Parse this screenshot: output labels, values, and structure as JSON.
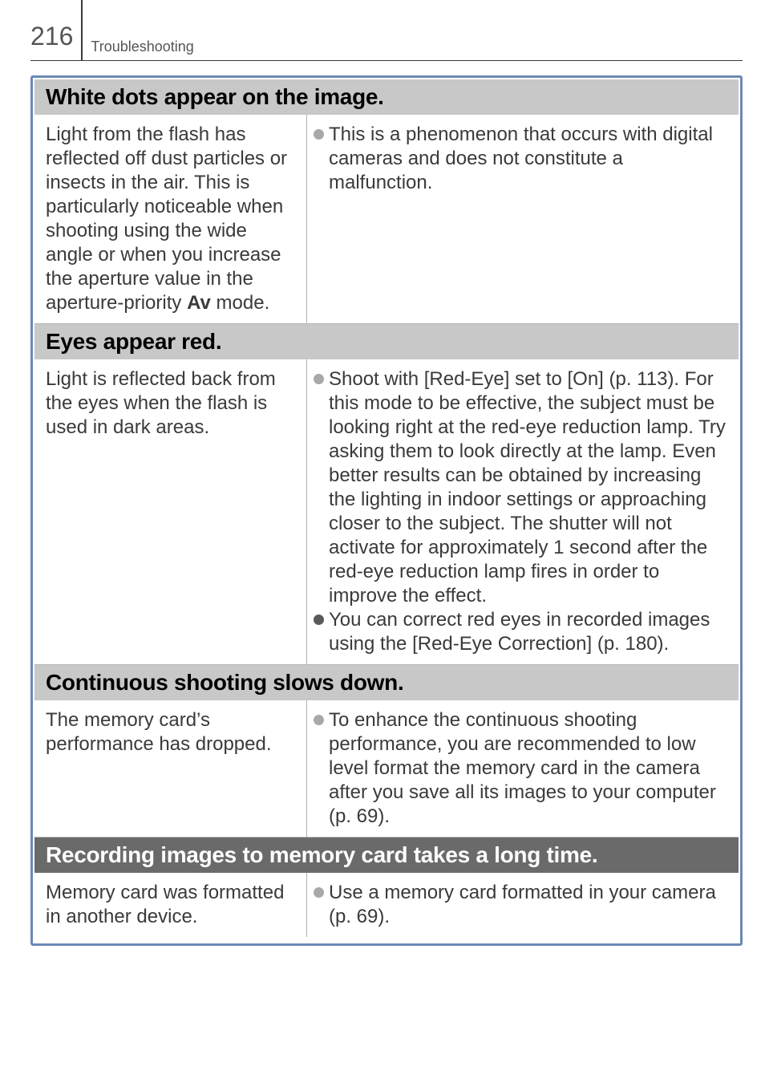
{
  "header": {
    "page_number": "216",
    "section_title": "Troubleshooting"
  },
  "colors": {
    "panel_border": "#6b89b5",
    "heading_bg_light": "#c8c8c8",
    "heading_bg_dark": "#6a6a6a",
    "body_text": "#3a3a3a",
    "rule": "#b4b4b4",
    "bullet_gray": "#a8a8a8",
    "bullet_dark": "#5a5a5a"
  },
  "sections": [
    {
      "id": "white-dots",
      "heading": "White dots appear on the image.",
      "heading_style": "light",
      "cause_parts": [
        "Light from the flash has reflected off dust particles or insects in the air. This is particularly noticeable when shooting using the wide angle or when you increase the aperture value in the aperture-priority ",
        "Av",
        "  mode."
      ],
      "remedies": [
        {
          "color": "#a8a8a8",
          "text": "This is a phenomenon that occurs with digital cameras and does not constitute a malfunction."
        }
      ]
    },
    {
      "id": "eyes-red",
      "heading": "Eyes appear red.",
      "heading_style": "light",
      "cause": "Light is reflected back from the eyes when the flash is used in dark areas.",
      "remedies": [
        {
          "color": "#a8a8a8",
          "text": "Shoot with [Red-Eye] set to [On] (p. 113). For this mode to be effective, the subject must be looking right at the red-eye reduction lamp. Try asking them to look directly at the lamp. Even better results can be obtained by increasing the lighting in indoor settings or approaching closer to the subject. The shutter will not activate for approximately 1 second after the red-eye reduction lamp fires in order to improve the effect."
        },
        {
          "color": "#5a5a5a",
          "text": "You can correct red eyes in recorded images using the [Red-Eye Correction] (p. 180)."
        }
      ]
    },
    {
      "id": "continuous-slow",
      "heading": "Continuous shooting slows down.",
      "heading_style": "light",
      "cause": "The memory card’s performance has dropped.",
      "remedies": [
        {
          "color": "#a8a8a8",
          "text": "To enhance the continuous shooting performance, you are recommended to low level format the memory card in the camera after you save all its images to your computer (p. 69)."
        }
      ]
    },
    {
      "id": "recording-long",
      "heading": "Recording images to memory card takes a long time.",
      "heading_style": "dark",
      "cause": "Memory card was formatted in another device.",
      "remedies": [
        {
          "color": "#a8a8a8",
          "text": "Use a memory card formatted in your camera (p. 69)."
        }
      ]
    }
  ]
}
